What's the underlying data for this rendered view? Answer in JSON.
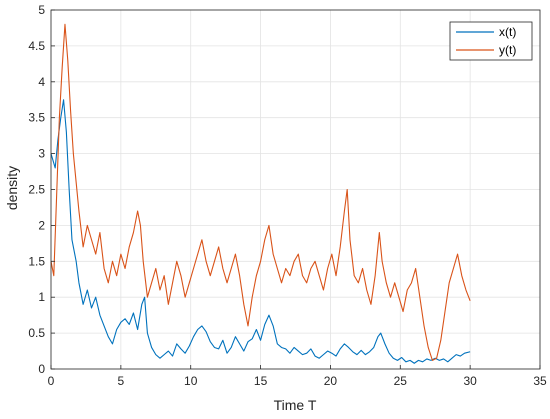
{
  "chart_data": {
    "type": "line",
    "title": "",
    "xlabel": "Time T",
    "ylabel": "density",
    "xlim": [
      0,
      35
    ],
    "ylim": [
      0,
      5
    ],
    "xticks": [
      0,
      5,
      10,
      15,
      20,
      25,
      30,
      35
    ],
    "yticks": [
      0,
      0.5,
      1,
      1.5,
      2,
      2.5,
      3,
      3.5,
      4,
      4.5,
      5
    ],
    "xtick_labels": [
      "0",
      "5",
      "10",
      "15",
      "20",
      "25",
      "30",
      "35"
    ],
    "ytick_labels": [
      "0",
      "0.5",
      "1",
      "1.5",
      "2",
      "2.5",
      "3",
      "3.5",
      "4",
      "4.5",
      "5"
    ],
    "grid": true,
    "legend_position": "top-right",
    "series": [
      {
        "name": "x(t)",
        "color": "#0072BD",
        "points": [
          [
            0,
            3.0
          ],
          [
            0.3,
            2.8
          ],
          [
            0.5,
            3.2
          ],
          [
            0.7,
            3.5
          ],
          [
            0.9,
            3.75
          ],
          [
            1.1,
            3.3
          ],
          [
            1.3,
            2.5
          ],
          [
            1.5,
            1.8
          ],
          [
            1.8,
            1.5
          ],
          [
            2.0,
            1.2
          ],
          [
            2.3,
            0.9
          ],
          [
            2.6,
            1.1
          ],
          [
            2.9,
            0.85
          ],
          [
            3.2,
            1.0
          ],
          [
            3.5,
            0.75
          ],
          [
            3.8,
            0.6
          ],
          [
            4.1,
            0.45
          ],
          [
            4.4,
            0.35
          ],
          [
            4.7,
            0.55
          ],
          [
            5.0,
            0.65
          ],
          [
            5.3,
            0.7
          ],
          [
            5.6,
            0.62
          ],
          [
            5.9,
            0.78
          ],
          [
            6.2,
            0.55
          ],
          [
            6.5,
            0.9
          ],
          [
            6.7,
            1.0
          ],
          [
            6.9,
            0.5
          ],
          [
            7.2,
            0.3
          ],
          [
            7.5,
            0.2
          ],
          [
            7.8,
            0.15
          ],
          [
            8.1,
            0.2
          ],
          [
            8.4,
            0.25
          ],
          [
            8.7,
            0.18
          ],
          [
            9.0,
            0.35
          ],
          [
            9.3,
            0.28
          ],
          [
            9.6,
            0.22
          ],
          [
            9.9,
            0.32
          ],
          [
            10.2,
            0.45
          ],
          [
            10.5,
            0.55
          ],
          [
            10.8,
            0.6
          ],
          [
            11.1,
            0.52
          ],
          [
            11.4,
            0.38
          ],
          [
            11.7,
            0.3
          ],
          [
            12.0,
            0.28
          ],
          [
            12.3,
            0.4
          ],
          [
            12.6,
            0.22
          ],
          [
            12.9,
            0.3
          ],
          [
            13.2,
            0.45
          ],
          [
            13.5,
            0.35
          ],
          [
            13.8,
            0.25
          ],
          [
            14.1,
            0.38
          ],
          [
            14.4,
            0.42
          ],
          [
            14.7,
            0.55
          ],
          [
            15.0,
            0.4
          ],
          [
            15.3,
            0.62
          ],
          [
            15.6,
            0.75
          ],
          [
            15.9,
            0.6
          ],
          [
            16.2,
            0.35
          ],
          [
            16.5,
            0.3
          ],
          [
            16.8,
            0.28
          ],
          [
            17.1,
            0.22
          ],
          [
            17.4,
            0.3
          ],
          [
            17.7,
            0.25
          ],
          [
            18.0,
            0.2
          ],
          [
            18.3,
            0.22
          ],
          [
            18.6,
            0.28
          ],
          [
            18.9,
            0.18
          ],
          [
            19.2,
            0.15
          ],
          [
            19.5,
            0.2
          ],
          [
            19.8,
            0.25
          ],
          [
            20.1,
            0.22
          ],
          [
            20.4,
            0.18
          ],
          [
            20.7,
            0.28
          ],
          [
            21.0,
            0.35
          ],
          [
            21.3,
            0.3
          ],
          [
            21.6,
            0.24
          ],
          [
            21.9,
            0.2
          ],
          [
            22.2,
            0.26
          ],
          [
            22.5,
            0.2
          ],
          [
            22.8,
            0.24
          ],
          [
            23.1,
            0.3
          ],
          [
            23.4,
            0.45
          ],
          [
            23.6,
            0.5
          ],
          [
            23.9,
            0.35
          ],
          [
            24.2,
            0.22
          ],
          [
            24.5,
            0.15
          ],
          [
            24.8,
            0.12
          ],
          [
            25.1,
            0.16
          ],
          [
            25.4,
            0.1
          ],
          [
            25.7,
            0.12
          ],
          [
            26.0,
            0.08
          ],
          [
            26.3,
            0.12
          ],
          [
            26.6,
            0.1
          ],
          [
            26.9,
            0.14
          ],
          [
            27.2,
            0.12
          ],
          [
            27.5,
            0.15
          ],
          [
            27.8,
            0.12
          ],
          [
            28.1,
            0.14
          ],
          [
            28.4,
            0.1
          ],
          [
            28.7,
            0.15
          ],
          [
            29.0,
            0.2
          ],
          [
            29.3,
            0.18
          ],
          [
            29.6,
            0.22
          ],
          [
            30.0,
            0.24
          ]
        ]
      },
      {
        "name": "y(t)",
        "color": "#D95319",
        "points": [
          [
            0,
            1.5
          ],
          [
            0.2,
            1.3
          ],
          [
            0.4,
            2.4
          ],
          [
            0.6,
            3.5
          ],
          [
            0.8,
            4.2
          ],
          [
            1.0,
            4.8
          ],
          [
            1.2,
            4.3
          ],
          [
            1.4,
            3.6
          ],
          [
            1.6,
            3.0
          ],
          [
            1.8,
            2.6
          ],
          [
            2.0,
            2.2
          ],
          [
            2.3,
            1.7
          ],
          [
            2.6,
            2.0
          ],
          [
            2.9,
            1.8
          ],
          [
            3.2,
            1.6
          ],
          [
            3.5,
            1.9
          ],
          [
            3.8,
            1.4
          ],
          [
            4.1,
            1.2
          ],
          [
            4.4,
            1.5
          ],
          [
            4.7,
            1.3
          ],
          [
            5.0,
            1.6
          ],
          [
            5.3,
            1.4
          ],
          [
            5.6,
            1.7
          ],
          [
            5.9,
            1.9
          ],
          [
            6.2,
            2.2
          ],
          [
            6.4,
            2.0
          ],
          [
            6.6,
            1.5
          ],
          [
            6.9,
            1.0
          ],
          [
            7.2,
            1.2
          ],
          [
            7.5,
            1.4
          ],
          [
            7.8,
            1.1
          ],
          [
            8.1,
            1.3
          ],
          [
            8.4,
            0.9
          ],
          [
            8.7,
            1.2
          ],
          [
            9.0,
            1.5
          ],
          [
            9.3,
            1.3
          ],
          [
            9.6,
            1.0
          ],
          [
            9.9,
            1.2
          ],
          [
            10.2,
            1.4
          ],
          [
            10.5,
            1.6
          ],
          [
            10.8,
            1.8
          ],
          [
            11.1,
            1.5
          ],
          [
            11.4,
            1.3
          ],
          [
            11.7,
            1.5
          ],
          [
            12.0,
            1.7
          ],
          [
            12.3,
            1.4
          ],
          [
            12.6,
            1.2
          ],
          [
            12.9,
            1.4
          ],
          [
            13.2,
            1.6
          ],
          [
            13.5,
            1.3
          ],
          [
            13.8,
            0.9
          ],
          [
            14.1,
            0.6
          ],
          [
            14.4,
            1.0
          ],
          [
            14.7,
            1.3
          ],
          [
            15.0,
            1.5
          ],
          [
            15.3,
            1.8
          ],
          [
            15.6,
            2.0
          ],
          [
            15.9,
            1.6
          ],
          [
            16.2,
            1.4
          ],
          [
            16.5,
            1.2
          ],
          [
            16.8,
            1.4
          ],
          [
            17.1,
            1.3
          ],
          [
            17.4,
            1.5
          ],
          [
            17.7,
            1.6
          ],
          [
            18.0,
            1.3
          ],
          [
            18.3,
            1.2
          ],
          [
            18.6,
            1.4
          ],
          [
            18.9,
            1.5
          ],
          [
            19.2,
            1.3
          ],
          [
            19.5,
            1.1
          ],
          [
            19.8,
            1.4
          ],
          [
            20.1,
            1.6
          ],
          [
            20.4,
            1.3
          ],
          [
            20.7,
            1.7
          ],
          [
            21.0,
            2.2
          ],
          [
            21.2,
            2.5
          ],
          [
            21.4,
            1.8
          ],
          [
            21.7,
            1.3
          ],
          [
            22.0,
            1.2
          ],
          [
            22.3,
            1.4
          ],
          [
            22.6,
            1.1
          ],
          [
            22.9,
            0.9
          ],
          [
            23.2,
            1.3
          ],
          [
            23.5,
            1.9
          ],
          [
            23.7,
            1.5
          ],
          [
            24.0,
            1.2
          ],
          [
            24.3,
            1.0
          ],
          [
            24.6,
            1.2
          ],
          [
            24.9,
            1.0
          ],
          [
            25.2,
            0.8
          ],
          [
            25.5,
            1.1
          ],
          [
            25.8,
            1.2
          ],
          [
            26.1,
            1.4
          ],
          [
            26.4,
            1.0
          ],
          [
            26.7,
            0.6
          ],
          [
            27.0,
            0.3
          ],
          [
            27.3,
            0.12
          ],
          [
            27.6,
            0.15
          ],
          [
            27.9,
            0.4
          ],
          [
            28.2,
            0.8
          ],
          [
            28.5,
            1.2
          ],
          [
            28.8,
            1.4
          ],
          [
            29.1,
            1.6
          ],
          [
            29.4,
            1.3
          ],
          [
            29.7,
            1.1
          ],
          [
            30.0,
            0.95
          ]
        ]
      }
    ]
  }
}
